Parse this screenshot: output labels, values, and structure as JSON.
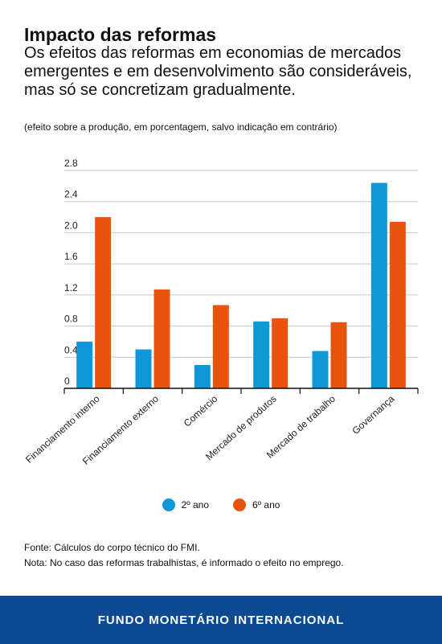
{
  "header": {
    "title": "Impacto das reformas",
    "subtitle": "Os efeitos das reformas em economias de mercados emergentes e em desenvolvimento são consideráveis, mas só se concretizam gradualmente.",
    "unit_note": "(efeito sobre a produção, em porcentagem, salvo indicação em contrário)"
  },
  "chart_data": {
    "type": "bar",
    "categories": [
      "Financiamento interno",
      "Financiamento externo",
      "Comércio",
      "Mercado de produtos",
      "Mercado de trabalho",
      "Governança"
    ],
    "series": [
      {
        "name": "2º ano",
        "color": "#1097d8",
        "values": [
          0.6,
          0.5,
          0.3,
          0.86,
          0.48,
          2.64
        ]
      },
      {
        "name": "6º ano",
        "color": "#e8540e",
        "values": [
          2.2,
          1.27,
          1.07,
          0.9,
          0.85,
          2.14
        ]
      }
    ],
    "yticks": [
      "0",
      "0.4",
      "0.8",
      "1.2",
      "1.6",
      "2.0",
      "2.4",
      "2.8"
    ],
    "ylim": [
      0,
      2.8
    ],
    "grid": true,
    "legend_position": "bottom-center"
  },
  "footer": {
    "source": "Fonte: Cálculos do corpo técnico do FMI.",
    "note": "Nota: No caso das reformas trabalhistas, é informado o efeito no emprego.",
    "brand": "FUNDO MONETÁRIO INTERNACIONAL",
    "brand_color": "#0c4a91"
  }
}
